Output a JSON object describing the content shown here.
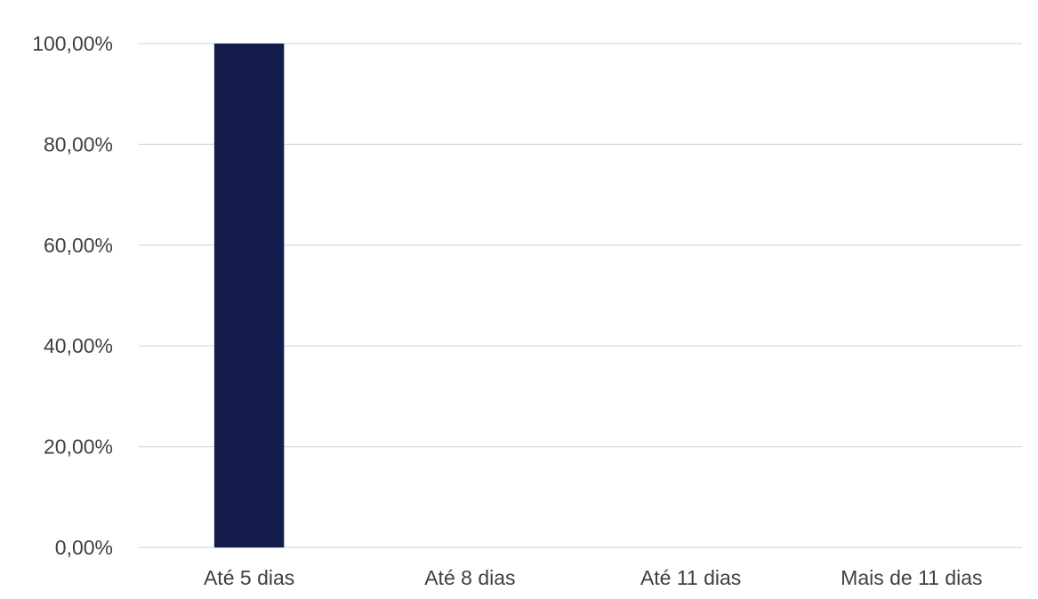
{
  "chart_data": {
    "type": "bar",
    "title": "",
    "xlabel": "",
    "ylabel": "",
    "categories": [
      "Até 5 dias",
      "Até 8 dias",
      "Até 11 dias",
      "Mais de 11 dias"
    ],
    "values": [
      100,
      0,
      0,
      0
    ],
    "ylim": [
      0,
      100
    ],
    "yticks": [
      0,
      20,
      40,
      60,
      80,
      100
    ],
    "ytick_labels": [
      "0,00%",
      "20,00%",
      "40,00%",
      "60,00%",
      "80,00%",
      "100,00%"
    ],
    "grid": true,
    "legend": "none",
    "bar_color": "#131c4d"
  }
}
